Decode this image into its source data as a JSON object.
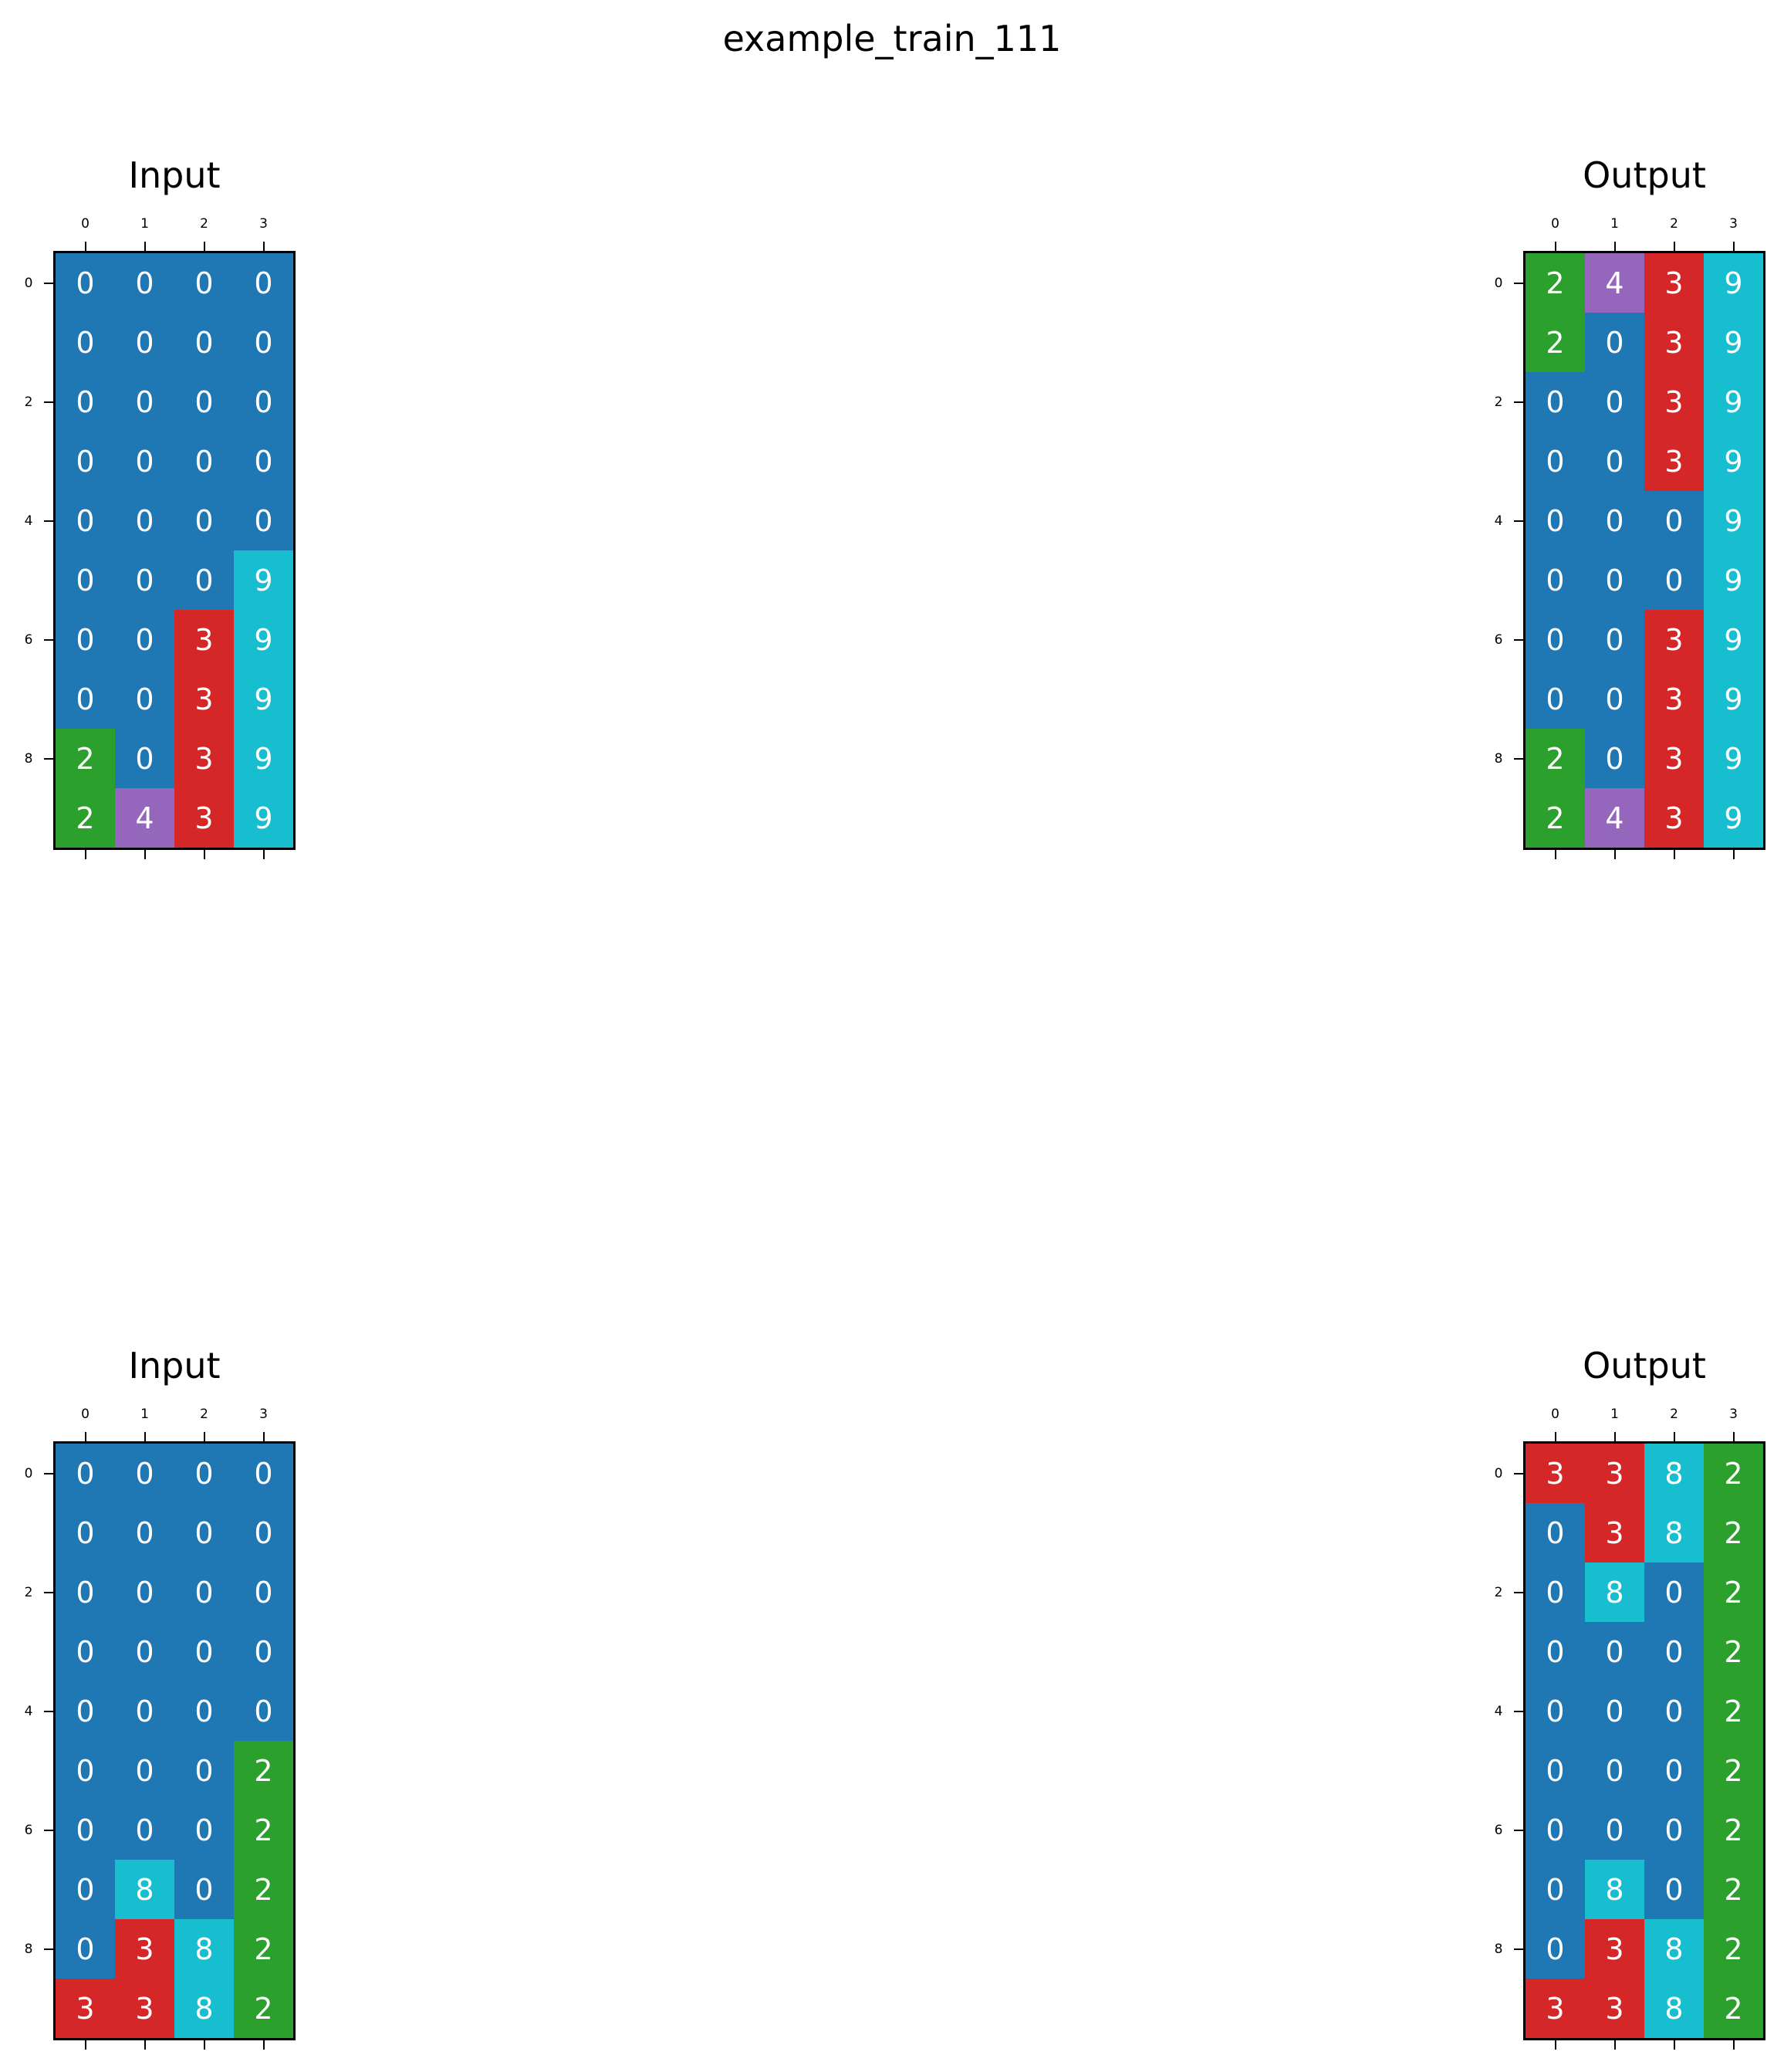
{
  "title": "example_train_111",
  "palette": {
    "0": "#1f77b4",
    "2": "#2ca02c",
    "3": "#d62728",
    "4": "#9467bd",
    "8": "#17becf",
    "9": "#17becf"
  },
  "x_ticks": [
    "0",
    "1",
    "2",
    "3"
  ],
  "y_ticks": [
    "0",
    "2",
    "4",
    "6",
    "8"
  ],
  "panels": [
    {
      "title": "Input",
      "grid": [
        [
          0,
          0,
          0,
          0
        ],
        [
          0,
          0,
          0,
          0
        ],
        [
          0,
          0,
          0,
          0
        ],
        [
          0,
          0,
          0,
          0
        ],
        [
          0,
          0,
          0,
          0
        ],
        [
          0,
          0,
          0,
          9
        ],
        [
          0,
          0,
          3,
          9
        ],
        [
          0,
          0,
          3,
          9
        ],
        [
          2,
          0,
          3,
          9
        ],
        [
          2,
          4,
          3,
          9
        ]
      ]
    },
    {
      "title": "Output",
      "grid": [
        [
          2,
          4,
          3,
          9
        ],
        [
          2,
          0,
          3,
          9
        ],
        [
          0,
          0,
          3,
          9
        ],
        [
          0,
          0,
          3,
          9
        ],
        [
          0,
          0,
          0,
          9
        ],
        [
          0,
          0,
          0,
          9
        ],
        [
          0,
          0,
          3,
          9
        ],
        [
          0,
          0,
          3,
          9
        ],
        [
          2,
          0,
          3,
          9
        ],
        [
          2,
          4,
          3,
          9
        ]
      ]
    },
    {
      "title": "Input",
      "grid": [
        [
          0,
          0,
          0,
          0
        ],
        [
          0,
          0,
          0,
          0
        ],
        [
          0,
          0,
          0,
          0
        ],
        [
          0,
          0,
          0,
          0
        ],
        [
          0,
          0,
          0,
          0
        ],
        [
          0,
          0,
          0,
          2
        ],
        [
          0,
          0,
          0,
          2
        ],
        [
          0,
          8,
          0,
          2
        ],
        [
          0,
          3,
          8,
          2
        ],
        [
          3,
          3,
          8,
          2
        ]
      ]
    },
    {
      "title": "Output",
      "grid": [
        [
          3,
          3,
          8,
          2
        ],
        [
          0,
          3,
          8,
          2
        ],
        [
          0,
          8,
          0,
          2
        ],
        [
          0,
          0,
          0,
          2
        ],
        [
          0,
          0,
          0,
          2
        ],
        [
          0,
          0,
          0,
          2
        ],
        [
          0,
          0,
          0,
          2
        ],
        [
          0,
          8,
          0,
          2
        ],
        [
          0,
          3,
          8,
          2
        ],
        [
          3,
          3,
          8,
          2
        ]
      ]
    }
  ]
}
